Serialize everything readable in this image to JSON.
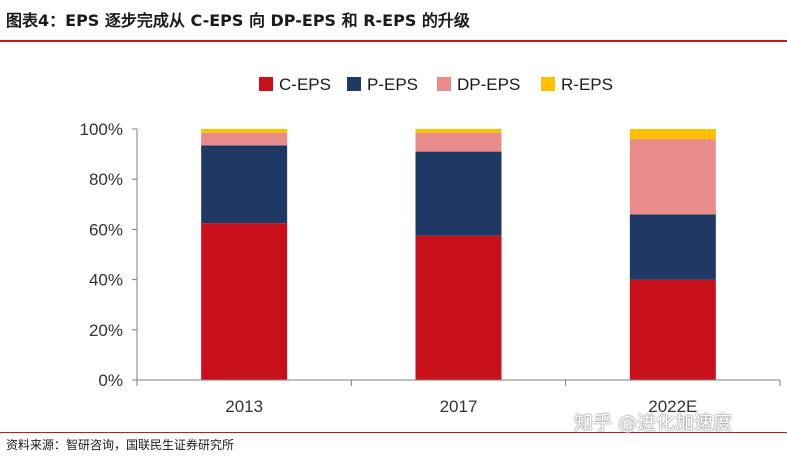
{
  "header": {
    "title": "图表4：EPS 逐步完成从 C-EPS 向 DP-EPS 和 R-EPS 的升级"
  },
  "footer": {
    "source": "资料来源：智研咨询，国联民生证券研究所",
    "watermark": "知乎 @进化加速度"
  },
  "chart_data": {
    "type": "bar",
    "stacked": true,
    "categories": [
      "2013",
      "2017",
      "2022E"
    ],
    "ylim": [
      0,
      100
    ],
    "yticks": [
      0,
      20,
      40,
      60,
      80,
      100
    ],
    "ytick_labels": [
      "0%",
      "20%",
      "40%",
      "60%",
      "80%",
      "100%"
    ],
    "legend_position": "top",
    "grid": false,
    "series": [
      {
        "name": "C-EPS",
        "color": "#c8101a",
        "values": [
          62.5,
          57.5,
          40.0
        ]
      },
      {
        "name": "P-EPS",
        "color": "#1f3864",
        "values": [
          31.0,
          33.5,
          26.0
        ]
      },
      {
        "name": "DP-EPS",
        "color": "#ea8c8c",
        "values": [
          5.0,
          7.5,
          30.0
        ]
      },
      {
        "name": "R-EPS",
        "color": "#ffc000",
        "values": [
          1.5,
          1.5,
          4.0
        ]
      }
    ]
  }
}
